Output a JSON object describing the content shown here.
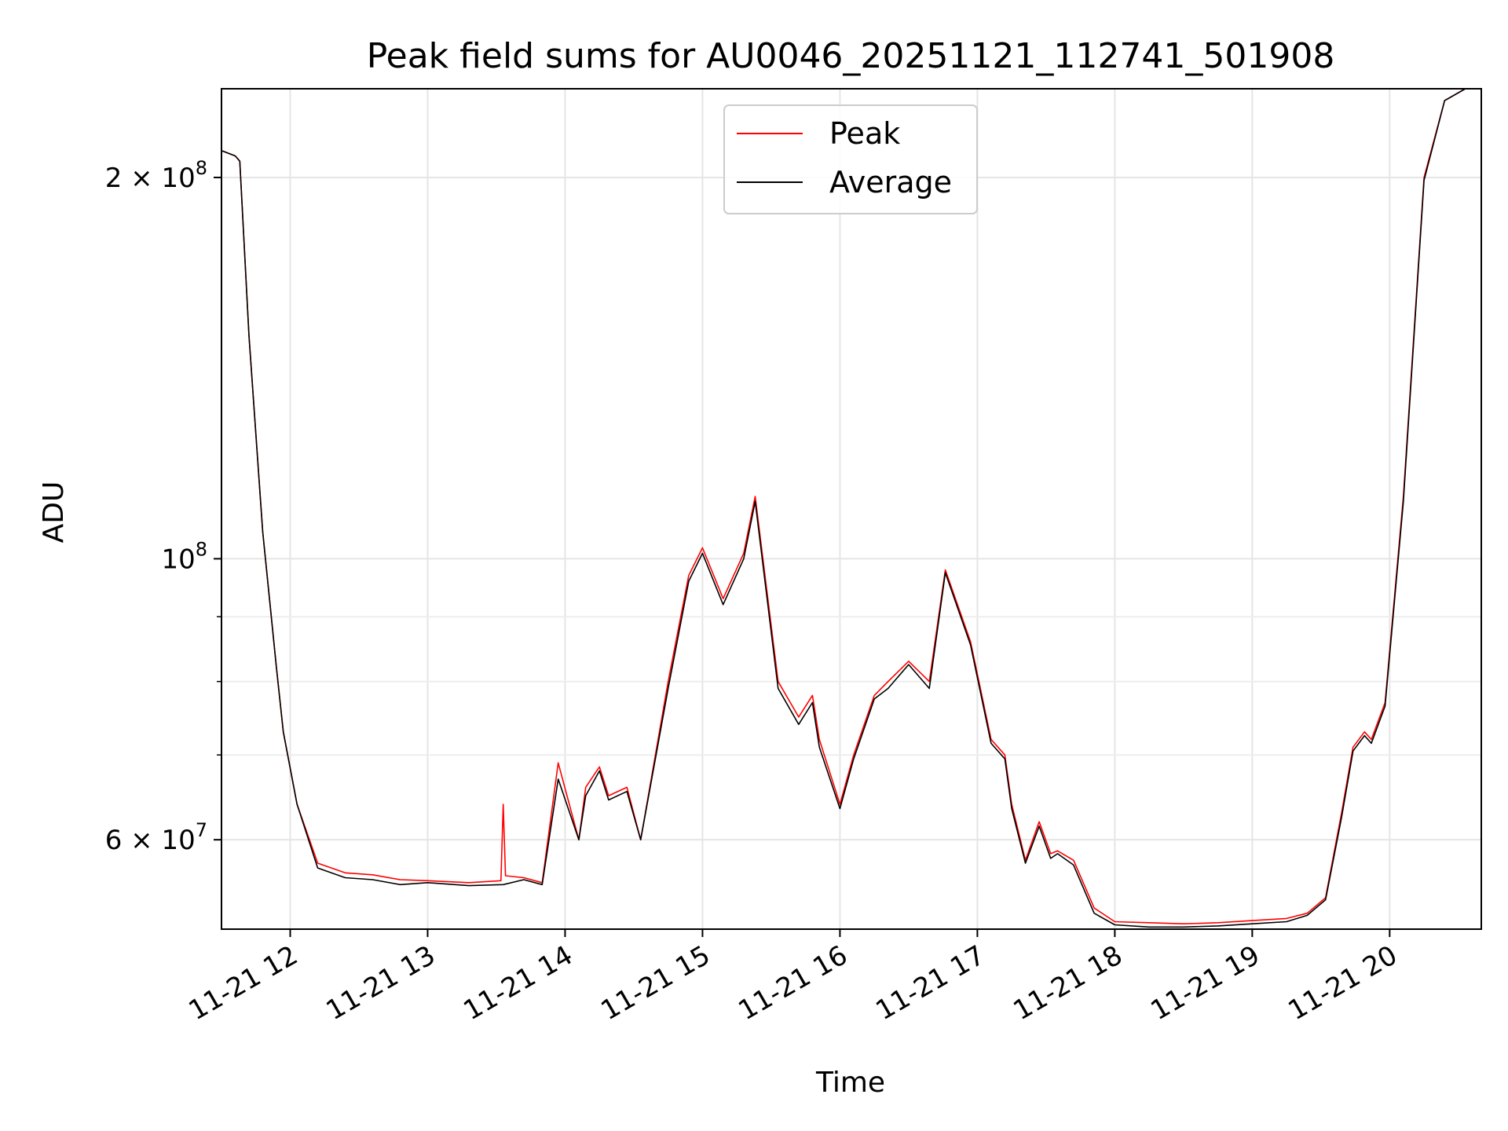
{
  "chart_data": {
    "type": "line",
    "title": "Peak field sums for AU0046_20251121_112741_501908",
    "xlabel": "Time",
    "ylabel": "ADU",
    "xscale": "time",
    "yscale": "log",
    "xlim": [
      "2025-11-21 11:30",
      "2025-11-21 20:40"
    ],
    "ylim": [
      51000000,
      235000000
    ],
    "grid": true,
    "legend_position": "top-center",
    "x_ticks": [
      {
        "value": "2025-11-21 12:00",
        "label": "11-21 12"
      },
      {
        "value": "2025-11-21 13:00",
        "label": "11-21 13"
      },
      {
        "value": "2025-11-21 14:00",
        "label": "11-21 14"
      },
      {
        "value": "2025-11-21 15:00",
        "label": "11-21 15"
      },
      {
        "value": "2025-11-21 16:00",
        "label": "11-21 16"
      },
      {
        "value": "2025-11-21 17:00",
        "label": "11-21 17"
      },
      {
        "value": "2025-11-21 18:00",
        "label": "11-21 18"
      },
      {
        "value": "2025-11-21 19:00",
        "label": "11-21 19"
      },
      {
        "value": "2025-11-21 20:00",
        "label": "11-21 20"
      }
    ],
    "y_ticks": [
      {
        "value": 200000000,
        "base": "2 × 10",
        "exp": "8"
      },
      {
        "value": 100000000,
        "base": "10",
        "exp": "8"
      },
      {
        "value": 60000000,
        "base": "6 × 10",
        "exp": "7"
      }
    ],
    "y_minor_ticks": [
      70000000,
      80000000,
      90000000
    ],
    "series": [
      {
        "name": "Peak",
        "color": "#ff0000",
        "x": [
          "2025-11-21 11:30",
          "2025-11-21 11:36",
          "2025-11-21 11:38",
          "2025-11-21 11:42",
          "2025-11-21 11:48",
          "2025-11-21 11:54",
          "2025-11-21 11:57",
          "2025-11-21 12:03",
          "2025-11-21 12:12",
          "2025-11-21 12:24",
          "2025-11-21 12:36",
          "2025-11-21 12:48",
          "2025-11-21 13:00",
          "2025-11-21 13:18",
          "2025-11-21 13:32",
          "2025-11-21 13:33",
          "2025-11-21 13:34",
          "2025-11-21 13:42",
          "2025-11-21 13:50",
          "2025-11-21 13:57",
          "2025-11-21 14:06",
          "2025-11-21 14:09",
          "2025-11-21 14:15",
          "2025-11-21 14:19",
          "2025-11-21 14:27",
          "2025-11-21 14:33",
          "2025-11-21 14:45",
          "2025-11-21 14:54",
          "2025-11-21 15:00",
          "2025-11-21 15:09",
          "2025-11-21 15:18",
          "2025-11-21 15:23",
          "2025-11-21 15:33",
          "2025-11-21 15:42",
          "2025-11-21 15:48",
          "2025-11-21 15:51",
          "2025-11-21 16:00",
          "2025-11-21 16:06",
          "2025-11-21 16:15",
          "2025-11-21 16:21",
          "2025-11-21 16:30",
          "2025-11-21 16:39",
          "2025-11-21 16:46",
          "2025-11-21 16:57",
          "2025-11-21 17:06",
          "2025-11-21 17:12",
          "2025-11-21 17:15",
          "2025-11-21 17:21",
          "2025-11-21 17:27",
          "2025-11-21 17:32",
          "2025-11-21 17:35",
          "2025-11-21 17:42",
          "2025-11-21 17:51",
          "2025-11-21 18:00",
          "2025-11-21 18:15",
          "2025-11-21 18:30",
          "2025-11-21 18:45",
          "2025-11-21 19:00",
          "2025-11-21 19:15",
          "2025-11-21 19:24",
          "2025-11-21 19:32",
          "2025-11-21 19:39",
          "2025-11-21 19:44",
          "2025-11-21 19:49",
          "2025-11-21 19:52",
          "2025-11-21 19:58",
          "2025-11-21 20:06",
          "2025-11-21 20:15",
          "2025-11-21 20:24",
          "2025-11-21 20:33",
          "2025-11-21 20:40"
        ],
        "y": [
          210000000,
          208000000,
          206000000,
          150000000,
          105000000,
          82000000,
          73000000,
          64000000,
          57500000,
          56500000,
          56300000,
          55800000,
          55700000,
          55500000,
          55700000,
          64000000,
          56200000,
          56000000,
          55500000,
          69000000,
          60000000,
          66000000,
          68500000,
          65000000,
          66000000,
          60000000,
          80000000,
          97000000,
          102000000,
          93000000,
          101000000,
          112000000,
          80000000,
          75000000,
          78000000,
          72000000,
          64000000,
          70000000,
          78000000,
          80000000,
          83000000,
          80000000,
          98000000,
          86000000,
          72000000,
          70000000,
          64000000,
          57800000,
          62000000,
          58500000,
          58800000,
          57800000,
          53000000,
          51700000,
          51600000,
          51500000,
          51600000,
          51800000,
          52000000,
          52500000,
          54000000,
          63000000,
          71000000,
          73000000,
          72000000,
          77000000,
          112000000,
          200000000,
          230000000,
          235000000,
          235000000
        ]
      },
      {
        "name": "Average",
        "color": "#000000",
        "x": [
          "2025-11-21 11:30",
          "2025-11-21 11:36",
          "2025-11-21 11:38",
          "2025-11-21 11:42",
          "2025-11-21 11:48",
          "2025-11-21 11:54",
          "2025-11-21 11:57",
          "2025-11-21 12:03",
          "2025-11-21 12:12",
          "2025-11-21 12:24",
          "2025-11-21 12:36",
          "2025-11-21 12:48",
          "2025-11-21 13:00",
          "2025-11-21 13:18",
          "2025-11-21 13:33",
          "2025-11-21 13:42",
          "2025-11-21 13:50",
          "2025-11-21 13:57",
          "2025-11-21 14:06",
          "2025-11-21 14:09",
          "2025-11-21 14:15",
          "2025-11-21 14:19",
          "2025-11-21 14:27",
          "2025-11-21 14:33",
          "2025-11-21 14:45",
          "2025-11-21 14:54",
          "2025-11-21 15:00",
          "2025-11-21 15:09",
          "2025-11-21 15:18",
          "2025-11-21 15:23",
          "2025-11-21 15:33",
          "2025-11-21 15:42",
          "2025-11-21 15:48",
          "2025-11-21 15:51",
          "2025-11-21 16:00",
          "2025-11-21 16:06",
          "2025-11-21 16:15",
          "2025-11-21 16:21",
          "2025-11-21 16:30",
          "2025-11-21 16:39",
          "2025-11-21 16:46",
          "2025-11-21 16:57",
          "2025-11-21 17:06",
          "2025-11-21 17:12",
          "2025-11-21 17:15",
          "2025-11-21 17:21",
          "2025-11-21 17:27",
          "2025-11-21 17:32",
          "2025-11-21 17:35",
          "2025-11-21 17:42",
          "2025-11-21 17:51",
          "2025-11-21 18:00",
          "2025-11-21 18:15",
          "2025-11-21 18:30",
          "2025-11-21 18:45",
          "2025-11-21 19:00",
          "2025-11-21 19:15",
          "2025-11-21 19:24",
          "2025-11-21 19:32",
          "2025-11-21 19:39",
          "2025-11-21 19:44",
          "2025-11-21 19:49",
          "2025-11-21 19:52",
          "2025-11-21 19:58",
          "2025-11-21 20:06",
          "2025-11-21 20:15",
          "2025-11-21 20:24",
          "2025-11-21 20:33",
          "2025-11-21 20:40"
        ],
        "y": [
          210000000,
          208000000,
          206000000,
          150000000,
          105000000,
          82000000,
          73000000,
          64000000,
          57000000,
          56000000,
          55800000,
          55300000,
          55500000,
          55200000,
          55300000,
          55800000,
          55300000,
          67000000,
          60000000,
          65000000,
          68000000,
          64500000,
          65500000,
          60000000,
          79000000,
          96000000,
          101000000,
          92000000,
          100000000,
          111000000,
          79000000,
          74000000,
          77000000,
          71000000,
          63500000,
          69500000,
          77500000,
          79000000,
          82500000,
          79000000,
          97500000,
          85500000,
          71500000,
          69500000,
          63500000,
          57500000,
          61500000,
          58000000,
          58500000,
          57300000,
          52500000,
          51400000,
          51200000,
          51200000,
          51300000,
          51500000,
          51700000,
          52300000,
          53800000,
          62500000,
          70500000,
          72500000,
          71500000,
          76500000,
          111000000,
          199000000,
          230000000,
          235000000,
          235000000
        ]
      }
    ]
  }
}
